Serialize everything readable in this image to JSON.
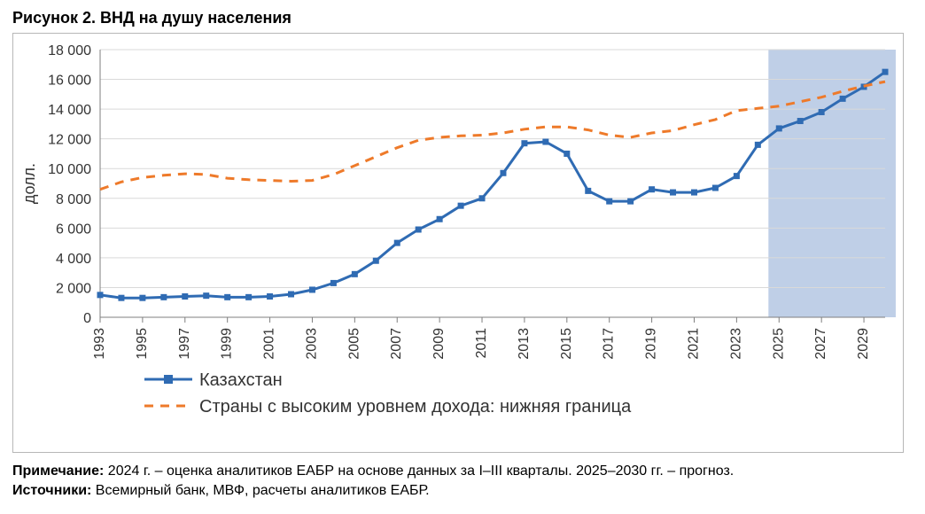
{
  "title": "Рисунок 2. ВНД на душу населения",
  "note_line1_label": "Примечание:",
  "note_line1_rest": " 2024 г. – оценка аналитиков ЕАБР на основе данных за I–III кварталы. 2025–2030 гг. – прогноз.",
  "note_line2_label": "Источники:",
  "note_line2_rest": " Всемирный банк, МВФ, расчеты аналитиков ЕАБР.",
  "chart": {
    "type": "line",
    "ylabel": "долл.",
    "xlim": [
      1993,
      2030
    ],
    "ylim": [
      0,
      18000
    ],
    "ytick_step": 2000,
    "yticks": [
      0,
      2000,
      4000,
      6000,
      8000,
      10000,
      12000,
      14000,
      16000,
      18000
    ],
    "xtick_years": [
      1993,
      1995,
      1997,
      1999,
      2001,
      2003,
      2005,
      2007,
      2009,
      2011,
      2013,
      2015,
      2017,
      2019,
      2021,
      2023,
      2025,
      2027,
      2029
    ],
    "years": [
      1993,
      1994,
      1995,
      1996,
      1997,
      1998,
      1999,
      2000,
      2001,
      2002,
      2003,
      2004,
      2005,
      2006,
      2007,
      2008,
      2009,
      2010,
      2011,
      2012,
      2013,
      2014,
      2015,
      2016,
      2017,
      2018,
      2019,
      2020,
      2021,
      2022,
      2023,
      2024,
      2025,
      2026,
      2027,
      2028,
      2029,
      2030
    ],
    "forecast_band": {
      "start": 2024.5,
      "end": 2030.5,
      "fill": "#8aa8d3",
      "opacity": 0.55
    },
    "background_color": "#ffffff",
    "grid_color": "#d9d9d9",
    "axis_color": "#7f7f7f",
    "label_fontsize": 16,
    "series": [
      {
        "name": "Казахстан",
        "color": "#2f6bb3",
        "line_width": 3,
        "marker": "square",
        "marker_size": 7,
        "dash": "none",
        "values": [
          1500,
          1300,
          1300,
          1350,
          1400,
          1450,
          1350,
          1350,
          1400,
          1550,
          1850,
          2300,
          2900,
          3800,
          5000,
          5900,
          6600,
          7500,
          8000,
          9700,
          11700,
          11800,
          11000,
          8500,
          7800,
          7800,
          8600,
          8400,
          8400,
          8700,
          9500,
          11600,
          12700,
          13200,
          13800,
          14700,
          15500,
          16500
        ]
      },
      {
        "name": "Страны с высоким уровнем дохода: нижняя граница",
        "color": "#ee7a2a",
        "line_width": 3,
        "marker": "none",
        "marker_size": 0,
        "dash": "10,8",
        "values": [
          8600,
          9100,
          9400,
          9550,
          9650,
          9600,
          9350,
          9250,
          9200,
          9150,
          9200,
          9600,
          10200,
          10800,
          11400,
          11900,
          12100,
          12200,
          12250,
          12400,
          12650,
          12800,
          12800,
          12600,
          12250,
          12100,
          12400,
          12550,
          12950,
          13300,
          13900,
          14050,
          14200,
          14500,
          14800,
          15200,
          15550,
          15850
        ]
      }
    ],
    "legend": {
      "items": [
        {
          "label": "Казахстан"
        },
        {
          "label": "Страны с высоким уровнем дохода: нижняя граница"
        }
      ]
    }
  }
}
